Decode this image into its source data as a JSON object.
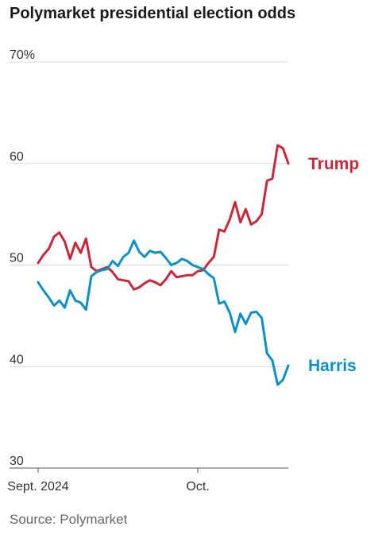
{
  "title": "Polymarket presidential election odds",
  "source": "Source: Polymarket",
  "chart_data": {
    "type": "line",
    "title": "Polymarket presidential election odds",
    "xlabel": "",
    "ylabel": "",
    "ylim": [
      30,
      70
    ],
    "xlim": [
      "2024-09-01",
      "2024-10-18"
    ],
    "y_ticks": [
      {
        "value": 70,
        "label": "70%"
      },
      {
        "value": 60,
        "label": "60"
      },
      {
        "value": 50,
        "label": "50"
      },
      {
        "value": 40,
        "label": "40"
      },
      {
        "value": 30,
        "label": "30"
      }
    ],
    "x_ticks": [
      {
        "date": "2024-09-01",
        "label": "Sept. 2024"
      },
      {
        "date": "2024-10-01",
        "label": "Oct."
      }
    ],
    "grid": true,
    "series": [
      {
        "name": "Trump",
        "color": "#c8283a",
        "points": [
          [
            "2024-09-01",
            50.2
          ],
          [
            "2024-09-02",
            51.0
          ],
          [
            "2024-09-03",
            51.6
          ],
          [
            "2024-09-04",
            52.8
          ],
          [
            "2024-09-05",
            53.2
          ],
          [
            "2024-09-06",
            52.3
          ],
          [
            "2024-09-07",
            50.6
          ],
          [
            "2024-09-08",
            52.2
          ],
          [
            "2024-09-09",
            51.2
          ],
          [
            "2024-09-10",
            52.6
          ],
          [
            "2024-09-11",
            49.8
          ],
          [
            "2024-09-12",
            49.4
          ],
          [
            "2024-09-13",
            49.6
          ],
          [
            "2024-09-14",
            49.8
          ],
          [
            "2024-09-15",
            49.3
          ],
          [
            "2024-09-16",
            48.6
          ],
          [
            "2024-09-17",
            48.5
          ],
          [
            "2024-09-18",
            48.4
          ],
          [
            "2024-09-19",
            47.6
          ],
          [
            "2024-09-20",
            47.8
          ],
          [
            "2024-09-21",
            48.2
          ],
          [
            "2024-09-22",
            48.5
          ],
          [
            "2024-09-23",
            48.3
          ],
          [
            "2024-09-24",
            48.0
          ],
          [
            "2024-09-25",
            48.6
          ],
          [
            "2024-09-26",
            49.4
          ],
          [
            "2024-09-27",
            48.8
          ],
          [
            "2024-09-28",
            48.9
          ],
          [
            "2024-09-29",
            49.0
          ],
          [
            "2024-09-30",
            49.0
          ],
          [
            "2024-10-01",
            49.4
          ],
          [
            "2024-10-02",
            49.5
          ],
          [
            "2024-10-03",
            50.2
          ],
          [
            "2024-10-04",
            50.8
          ],
          [
            "2024-10-05",
            53.5
          ],
          [
            "2024-10-06",
            53.3
          ],
          [
            "2024-10-07",
            54.5
          ],
          [
            "2024-10-08",
            56.2
          ],
          [
            "2024-10-09",
            54.2
          ],
          [
            "2024-10-10",
            55.5
          ],
          [
            "2024-10-11",
            54.0
          ],
          [
            "2024-10-12",
            54.3
          ],
          [
            "2024-10-13",
            55.0
          ],
          [
            "2024-10-14",
            58.3
          ],
          [
            "2024-10-15",
            58.5
          ],
          [
            "2024-10-16",
            61.8
          ],
          [
            "2024-10-17",
            61.5
          ],
          [
            "2024-10-18",
            60.0
          ]
        ]
      },
      {
        "name": "Harris",
        "color": "#0a8fc9",
        "points": [
          [
            "2024-09-01",
            48.3
          ],
          [
            "2024-09-02",
            47.5
          ],
          [
            "2024-09-03",
            46.8
          ],
          [
            "2024-09-04",
            46.0
          ],
          [
            "2024-09-05",
            46.5
          ],
          [
            "2024-09-06",
            45.8
          ],
          [
            "2024-09-07",
            47.5
          ],
          [
            "2024-09-08",
            46.5
          ],
          [
            "2024-09-09",
            46.3
          ],
          [
            "2024-09-10",
            45.6
          ],
          [
            "2024-09-11",
            48.9
          ],
          [
            "2024-09-12",
            49.3
          ],
          [
            "2024-09-13",
            49.5
          ],
          [
            "2024-09-14",
            49.6
          ],
          [
            "2024-09-15",
            50.4
          ],
          [
            "2024-09-16",
            49.9
          ],
          [
            "2024-09-17",
            50.8
          ],
          [
            "2024-09-18",
            51.2
          ],
          [
            "2024-09-19",
            52.4
          ],
          [
            "2024-09-20",
            51.3
          ],
          [
            "2024-09-21",
            50.8
          ],
          [
            "2024-09-22",
            51.4
          ],
          [
            "2024-09-23",
            51.2
          ],
          [
            "2024-09-24",
            51.3
          ],
          [
            "2024-09-25",
            50.7
          ],
          [
            "2024-09-26",
            50.0
          ],
          [
            "2024-09-27",
            50.2
          ],
          [
            "2024-09-28",
            50.6
          ],
          [
            "2024-09-29",
            50.4
          ],
          [
            "2024-09-30",
            50.0
          ],
          [
            "2024-10-01",
            49.8
          ],
          [
            "2024-10-02",
            49.6
          ],
          [
            "2024-10-03",
            49.1
          ],
          [
            "2024-10-04",
            48.7
          ],
          [
            "2024-10-05",
            46.2
          ],
          [
            "2024-10-06",
            46.4
          ],
          [
            "2024-10-07",
            45.3
          ],
          [
            "2024-10-08",
            43.4
          ],
          [
            "2024-10-09",
            45.2
          ],
          [
            "2024-10-10",
            44.2
          ],
          [
            "2024-10-11",
            45.3
          ],
          [
            "2024-10-12",
            45.4
          ],
          [
            "2024-10-13",
            44.8
          ],
          [
            "2024-10-14",
            41.3
          ],
          [
            "2024-10-15",
            40.6
          ],
          [
            "2024-10-16",
            38.2
          ],
          [
            "2024-10-17",
            38.7
          ],
          [
            "2024-10-18",
            40.1
          ]
        ]
      }
    ]
  }
}
